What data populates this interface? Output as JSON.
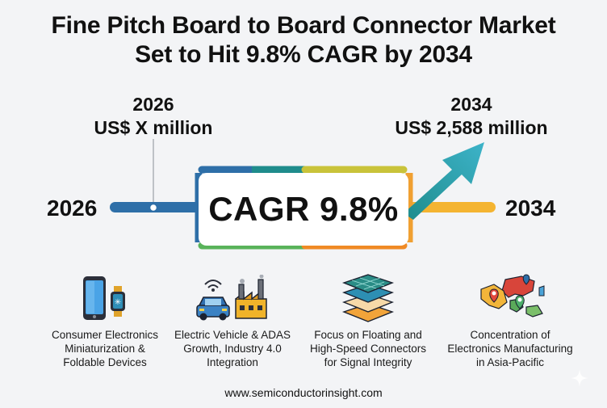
{
  "title": {
    "line1": "Fine Pitch Board to Board Connector Market",
    "line2": "Set to Hit 9.8% CAGR by 2034"
  },
  "start": {
    "year": "2026",
    "value": "US$ X million",
    "side_year": "2026"
  },
  "end": {
    "year": "2034",
    "value": "US$ 2,588 million",
    "side_year": "2034"
  },
  "cagr_label": "CAGR 9.8%",
  "colors": {
    "blue": "#2e6fa8",
    "teal": "#1f8c8c",
    "green": "#59b35a",
    "yellow": "#e8c32c",
    "orange": "#f08a24"
  },
  "features": [
    {
      "icon": "smartphone-smartwatch-icon",
      "lines": [
        "Consumer Electronics",
        "Miniaturization &",
        "Foldable Devices"
      ]
    },
    {
      "icon": "electric-car-factory-icon",
      "lines": [
        "Electric Vehicle & ADAS",
        "Growth, Industry 4.0",
        "Integration"
      ]
    },
    {
      "icon": "stacked-layers-icon",
      "lines": [
        "Focus on Floating and",
        "High-Speed Connectors",
        "for Signal Integrity"
      ]
    },
    {
      "icon": "asia-map-pins-icon",
      "lines": [
        "Concentration of",
        "Electronics Manufacturing",
        "in Asia-Pacific"
      ]
    }
  ],
  "footer": "www.semiconductorinsight.com"
}
